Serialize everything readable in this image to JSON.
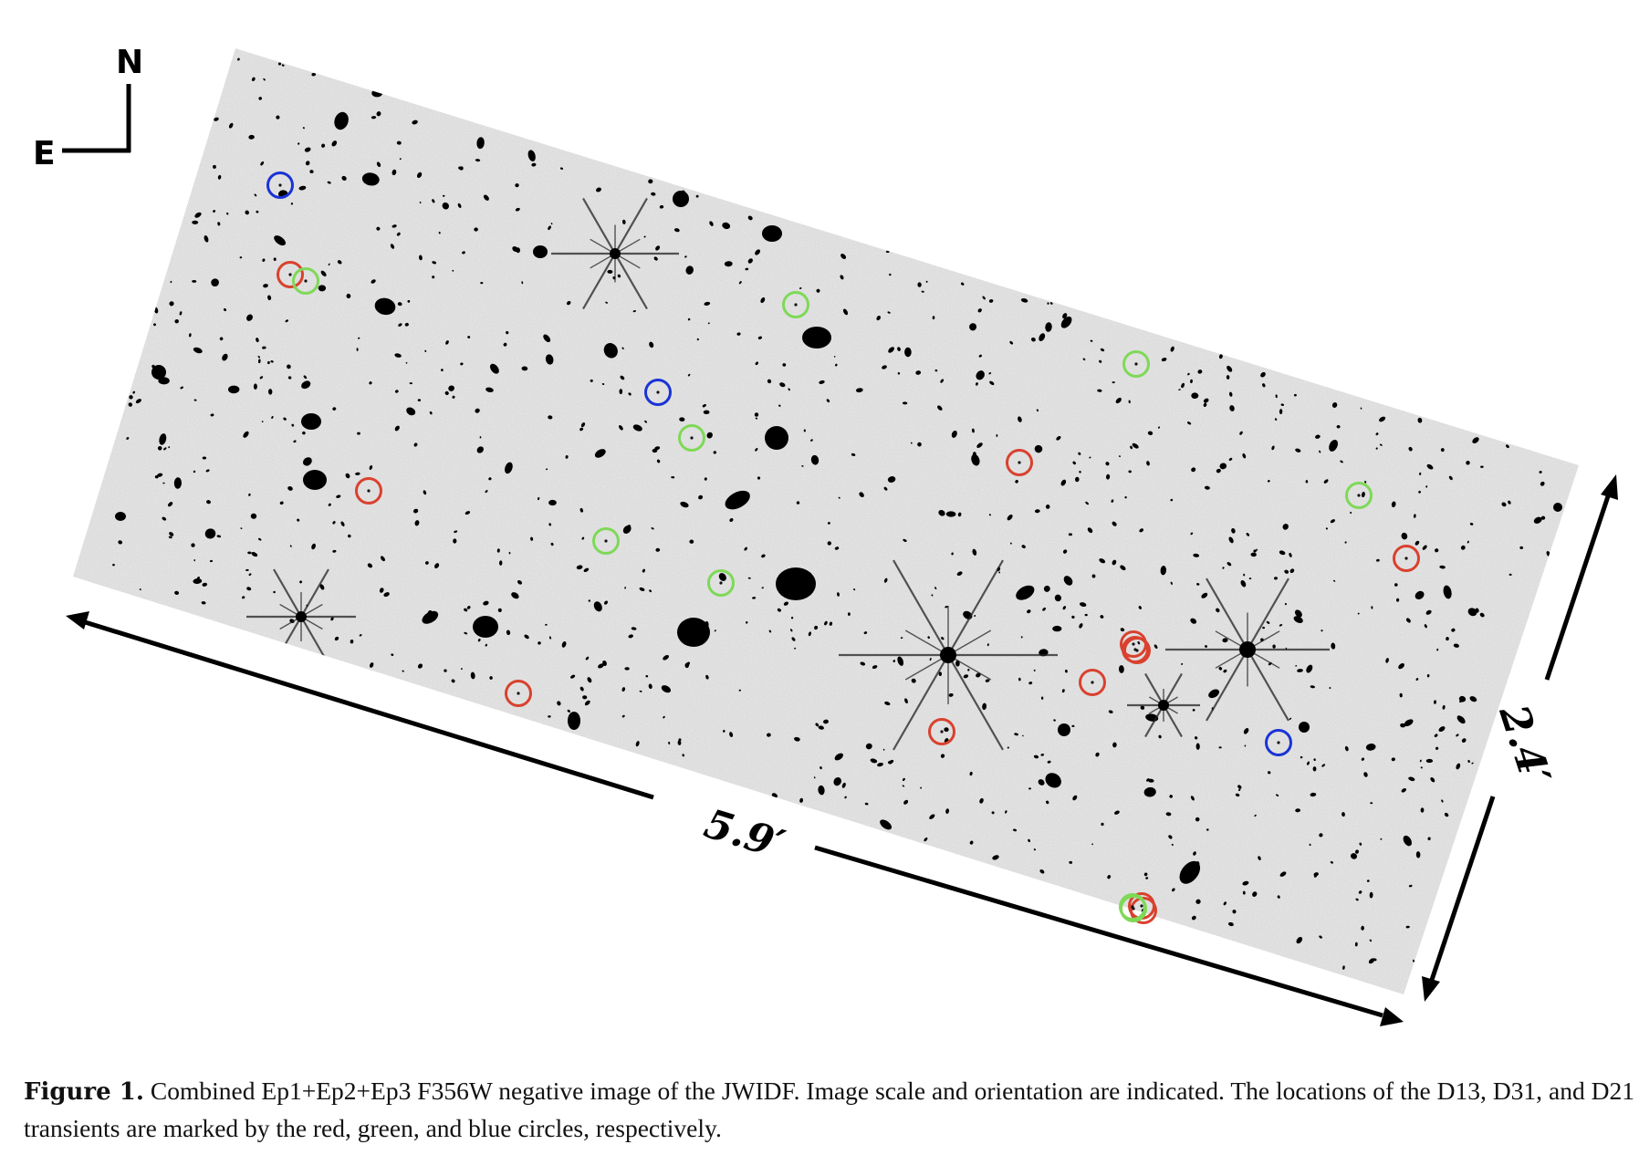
{
  "figure": {
    "compass": {
      "north_label": "N",
      "east_label": "E"
    },
    "scale": {
      "length_label": "5.9′",
      "width_label": "2.4′"
    },
    "colors": {
      "D13": "#d9412e",
      "D31": "#7ed957",
      "D21": "#1a33d6",
      "background": "#e4e4e4"
    },
    "markers": {
      "D13": 12,
      "D31": 9,
      "D21": 3
    }
  },
  "caption": {
    "label": "Figure 1.",
    "text": "Combined Ep1+Ep2+Ep3 F356W negative image of the JWIDF. Image scale and orientation are indicated. The locations of the D13, D31, and D21 transients are marked by the red, green, and blue circles, respectively."
  }
}
